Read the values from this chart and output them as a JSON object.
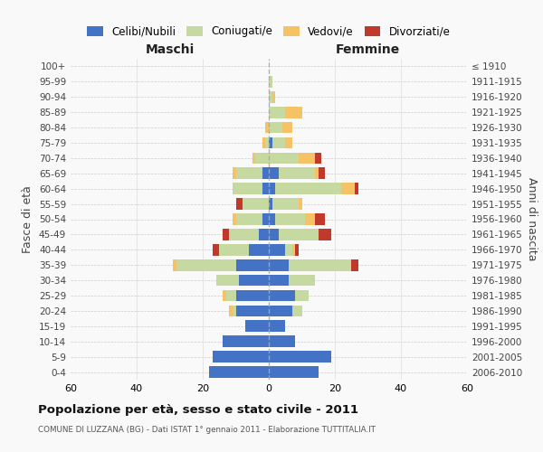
{
  "age_groups": [
    "0-4",
    "5-9",
    "10-14",
    "15-19",
    "20-24",
    "25-29",
    "30-34",
    "35-39",
    "40-44",
    "45-49",
    "50-54",
    "55-59",
    "60-64",
    "65-69",
    "70-74",
    "75-79",
    "80-84",
    "85-89",
    "90-94",
    "95-99",
    "100+"
  ],
  "birth_years": [
    "2006-2010",
    "2001-2005",
    "1996-2000",
    "1991-1995",
    "1986-1990",
    "1981-1985",
    "1976-1980",
    "1971-1975",
    "1966-1970",
    "1961-1965",
    "1956-1960",
    "1951-1955",
    "1946-1950",
    "1941-1945",
    "1936-1940",
    "1931-1935",
    "1926-1930",
    "1921-1925",
    "1916-1920",
    "1911-1915",
    "≤ 1910"
  ],
  "colors": {
    "celibi": "#4472C4",
    "coniugati": "#C5D9A0",
    "vedovi": "#F5C265",
    "divorziati": "#C0392B"
  },
  "maschi": {
    "celibi": [
      18,
      17,
      14,
      7,
      10,
      10,
      9,
      10,
      6,
      3,
      2,
      0,
      2,
      2,
      0,
      0,
      0,
      0,
      0,
      0,
      0
    ],
    "coniugati": [
      0,
      0,
      0,
      0,
      1,
      3,
      7,
      18,
      9,
      9,
      8,
      8,
      9,
      8,
      4,
      1,
      0,
      0,
      0,
      0,
      0
    ],
    "vedovi": [
      0,
      0,
      0,
      0,
      1,
      1,
      0,
      1,
      0,
      0,
      1,
      0,
      0,
      1,
      1,
      1,
      1,
      0,
      0,
      0,
      0
    ],
    "divorziati": [
      0,
      0,
      0,
      0,
      0,
      0,
      0,
      0,
      2,
      2,
      0,
      2,
      0,
      0,
      0,
      0,
      0,
      0,
      0,
      0,
      0
    ]
  },
  "femmine": {
    "celibi": [
      15,
      19,
      8,
      5,
      7,
      8,
      6,
      6,
      5,
      3,
      2,
      1,
      2,
      3,
      0,
      1,
      0,
      0,
      0,
      0,
      0
    ],
    "coniugati": [
      0,
      0,
      0,
      0,
      3,
      4,
      8,
      19,
      2,
      12,
      9,
      8,
      20,
      11,
      9,
      4,
      4,
      5,
      1,
      1,
      0
    ],
    "vedovi": [
      0,
      0,
      0,
      0,
      0,
      0,
      0,
      0,
      1,
      0,
      3,
      1,
      4,
      1,
      5,
      2,
      3,
      5,
      1,
      0,
      0
    ],
    "divorziati": [
      0,
      0,
      0,
      0,
      0,
      0,
      0,
      2,
      1,
      4,
      3,
      0,
      1,
      2,
      2,
      0,
      0,
      0,
      0,
      0,
      0
    ]
  },
  "xlim": 60,
  "title": "Popolazione per età, sesso e stato civile - 2011",
  "subtitle": "COMUNE DI LUZZANA (BG) - Dati ISTAT 1° gennaio 2011 - Elaborazione TUTTITALIA.IT",
  "ylabel_left": "Fasce di età",
  "ylabel_right": "Anni di nascita",
  "xlabel_left": "Maschi",
  "xlabel_right": "Femmine",
  "legend_labels": [
    "Celibi/Nubili",
    "Coniugati/e",
    "Vedovi/e",
    "Divorziati/e"
  ],
  "background_color": "#f9f9f9",
  "grid_color": "#cccccc"
}
